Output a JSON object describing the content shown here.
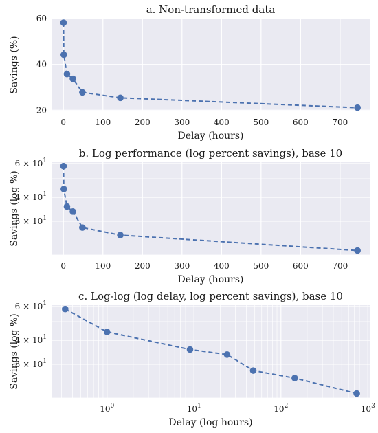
{
  "chart_data": [
    {
      "type": "line",
      "title": "a. Non-transformed data",
      "xlabel": "Delay (hours)",
      "ylabel": "Savings (%)",
      "x": [
        0.33,
        1,
        9,
        24,
        48,
        144,
        744
      ],
      "y": [
        58.2,
        44.2,
        35.8,
        33.7,
        27.8,
        25.4,
        21.1
      ],
      "x_scale": "linear",
      "y_scale": "linear",
      "xlim": [
        -30,
        775
      ],
      "ylim": [
        19.5,
        60
      ],
      "xticks": [
        0,
        100,
        200,
        300,
        400,
        500,
        600,
        700
      ],
      "xticklabels": [
        "0",
        "100",
        "200",
        "300",
        "400",
        "500",
        "600",
        "700"
      ],
      "yticks": [
        20,
        40,
        60
      ],
      "yticklabels": [
        "20",
        "40",
        "60"
      ],
      "grid": true
    },
    {
      "type": "line",
      "title": "b. Log performance (log percent savings), base 10",
      "xlabel": "Delay (hours)",
      "ylabel": "Savings (log %)",
      "x": [
        0.33,
        1,
        9,
        24,
        48,
        144,
        744
      ],
      "y": [
        58.2,
        44.2,
        35.8,
        33.7,
        27.8,
        25.4,
        21.1
      ],
      "x_scale": "linear",
      "y_scale": "log",
      "xlim": [
        -30,
        775
      ],
      "ylim": [
        20,
        61
      ],
      "xticks": [
        0,
        100,
        200,
        300,
        400,
        500,
        600,
        700
      ],
      "xticklabels": [
        "0",
        "100",
        "200",
        "300",
        "400",
        "500",
        "600",
        "700"
      ],
      "yticks": [
        30,
        40,
        60
      ],
      "yticklabels_base": [
        "3 × 10",
        "4 × 10",
        "6 × 10"
      ],
      "yticklabels_exp": [
        "1",
        "1",
        "1"
      ],
      "grid": true
    },
    {
      "type": "line",
      "title": "c. Log-log (log delay, log percent savings), base 10",
      "xlabel": "Delay (log hours)",
      "ylabel": "Savings (log %)",
      "x": [
        0.33,
        1,
        9,
        24,
        48,
        144,
        744
      ],
      "y": [
        58.2,
        44.2,
        35.8,
        33.7,
        27.8,
        25.4,
        21.1
      ],
      "x_scale": "log",
      "y_scale": "log",
      "xlim": [
        0.23,
        1050
      ],
      "ylim": [
        20,
        61
      ],
      "xticks": [
        1,
        100,
        1000
      ],
      "xticklabels_base": [
        "10",
        "10",
        "10"
      ],
      "xticklabels_exp": [
        "0",
        "2",
        "3"
      ],
      "extra_xticks": [
        10
      ],
      "extra_xticklabels_base": [
        "10"
      ],
      "extra_xticklabels_exp": [
        "1"
      ],
      "yticks": [
        30,
        40,
        60
      ],
      "yticklabels_base": [
        "3 × 10",
        "4 × 10",
        "6 × 10"
      ],
      "yticklabels_exp": [
        "1",
        "1",
        "1"
      ],
      "grid": true
    }
  ]
}
